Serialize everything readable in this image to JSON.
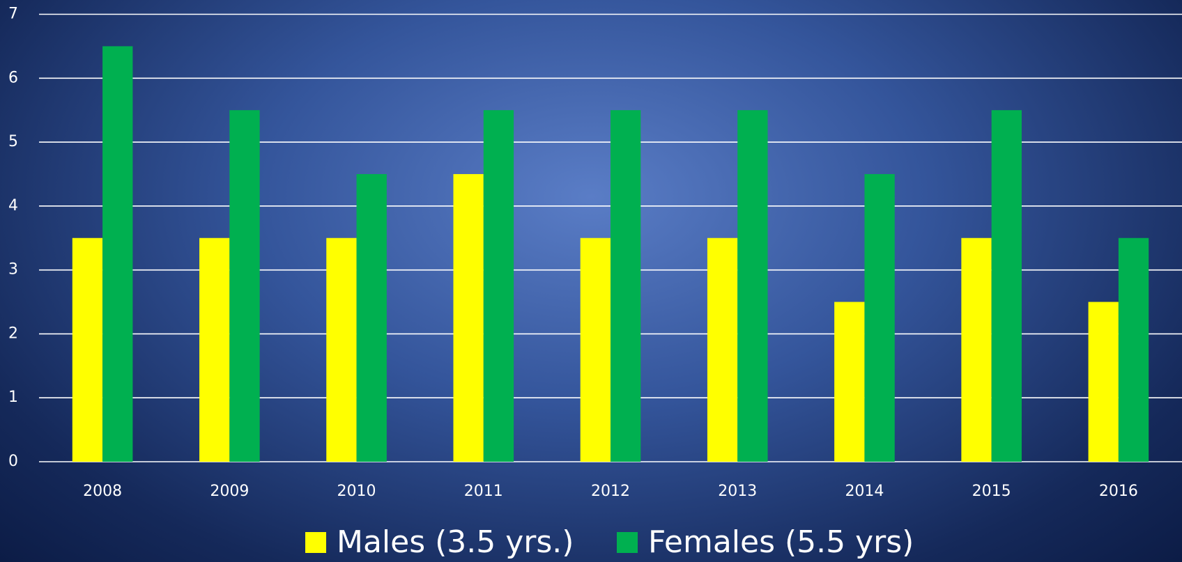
{
  "chart_data": {
    "type": "bar",
    "categories": [
      "2008",
      "2009",
      "2010",
      "2011",
      "2012",
      "2013",
      "2014",
      "2015",
      "2016"
    ],
    "series": [
      {
        "name": "Males (3.5 yrs.)",
        "color": "#ffff00",
        "values": [
          3.5,
          3.5,
          3.5,
          4.5,
          3.5,
          3.5,
          2.5,
          3.5,
          2.5
        ]
      },
      {
        "name": "Females (5.5 yrs)",
        "color": "#00b050",
        "values": [
          6.5,
          5.5,
          4.5,
          5.5,
          5.5,
          5.5,
          4.5,
          5.5,
          3.5
        ]
      }
    ],
    "ylim": [
      0,
      7
    ],
    "yticks": [
      0,
      1,
      2,
      3,
      4,
      5,
      6,
      7
    ],
    "grid": true,
    "legend": "bottom"
  }
}
